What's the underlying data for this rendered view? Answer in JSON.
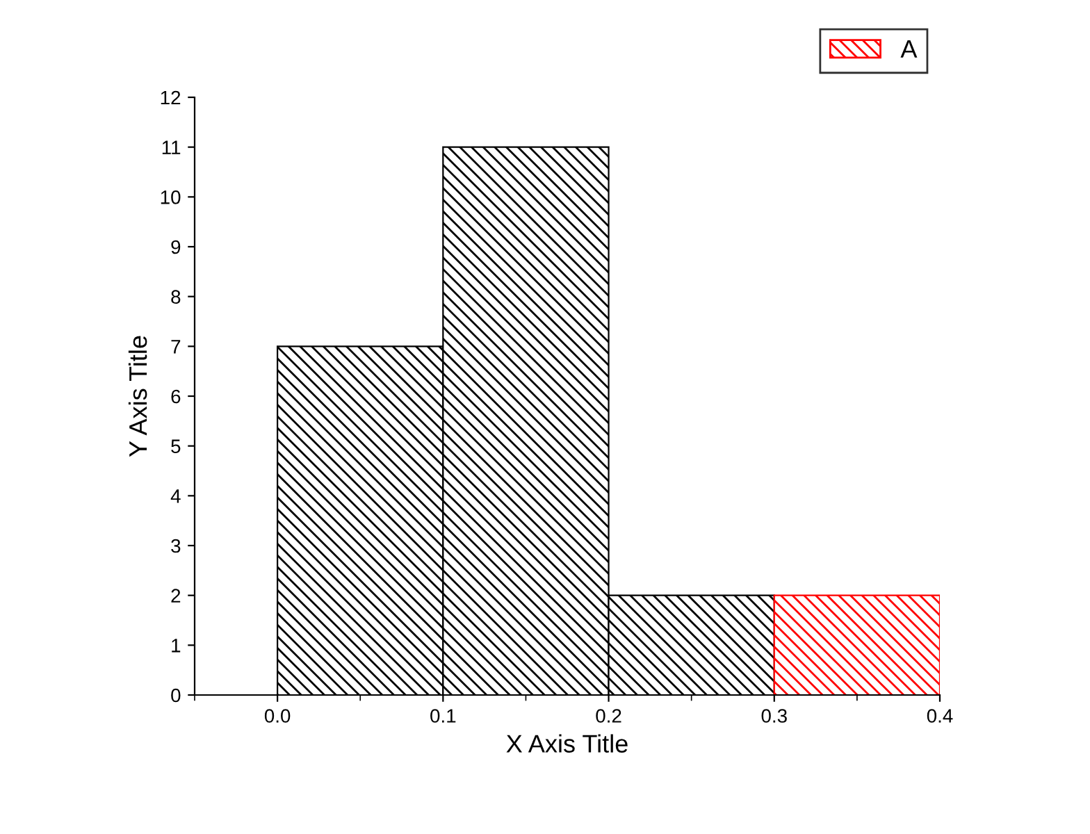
{
  "chart_data": {
    "type": "histogram",
    "xlabel": "X Axis Title",
    "ylabel": "Y Axis Title",
    "bins": [
      0.0,
      0.1,
      0.2,
      0.3,
      0.4
    ],
    "series": [
      {
        "name": "A",
        "color": "#ff0000",
        "colors": [
          "#000000",
          "#000000",
          "#000000",
          "#ff0000"
        ],
        "values": [
          7,
          11,
          2,
          2
        ]
      }
    ],
    "xlim": [
      -0.05,
      0.4
    ],
    "xticks": [
      {
        "value": 0.0,
        "label": "0.0"
      },
      {
        "value": 0.1,
        "label": "0.1"
      },
      {
        "value": 0.2,
        "label": "0.2"
      },
      {
        "value": 0.3,
        "label": "0.3"
      },
      {
        "value": 0.4,
        "label": "0.4"
      }
    ],
    "ylim": [
      0,
      12
    ],
    "yticks": [
      0,
      1,
      2,
      3,
      4,
      5,
      6,
      7,
      8,
      9,
      10,
      11,
      12
    ],
    "grid": false,
    "legend": "top right"
  }
}
